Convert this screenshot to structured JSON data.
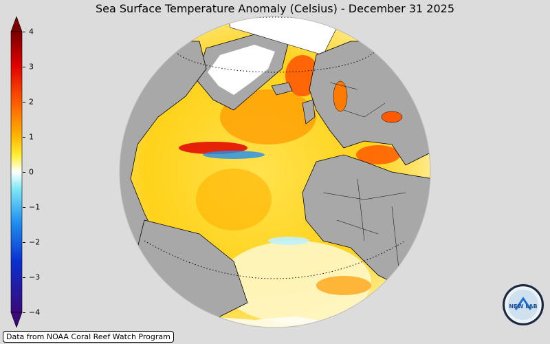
{
  "title": "Sea Surface Temperature Anomaly (Celsius) - December 31 2025",
  "colorbar": {
    "ticks": [
      "4",
      "3",
      "2",
      "1",
      "0",
      "−1",
      "−2",
      "−3",
      "−4"
    ],
    "tick_values": [
      4,
      3,
      2,
      1,
      0,
      -1,
      -2,
      -3,
      -4
    ],
    "min": -4,
    "max": 4,
    "colors": [
      "#3a0a7a",
      "#0a2fd1",
      "#1f8ff0",
      "#7fe8f5",
      "#ffffff",
      "#ffee33",
      "#ffb300",
      "#ff5a00",
      "#e00000",
      "#7a0000"
    ]
  },
  "map": {
    "ocean_warm": "#ffd21a",
    "ocean_hot": "#ff6a00",
    "land": "#a8a8a8",
    "ice": "#ffffff"
  },
  "credit": "Data from NOAA Coral Reef Watch Program",
  "logo_text": "NEW LAB"
}
